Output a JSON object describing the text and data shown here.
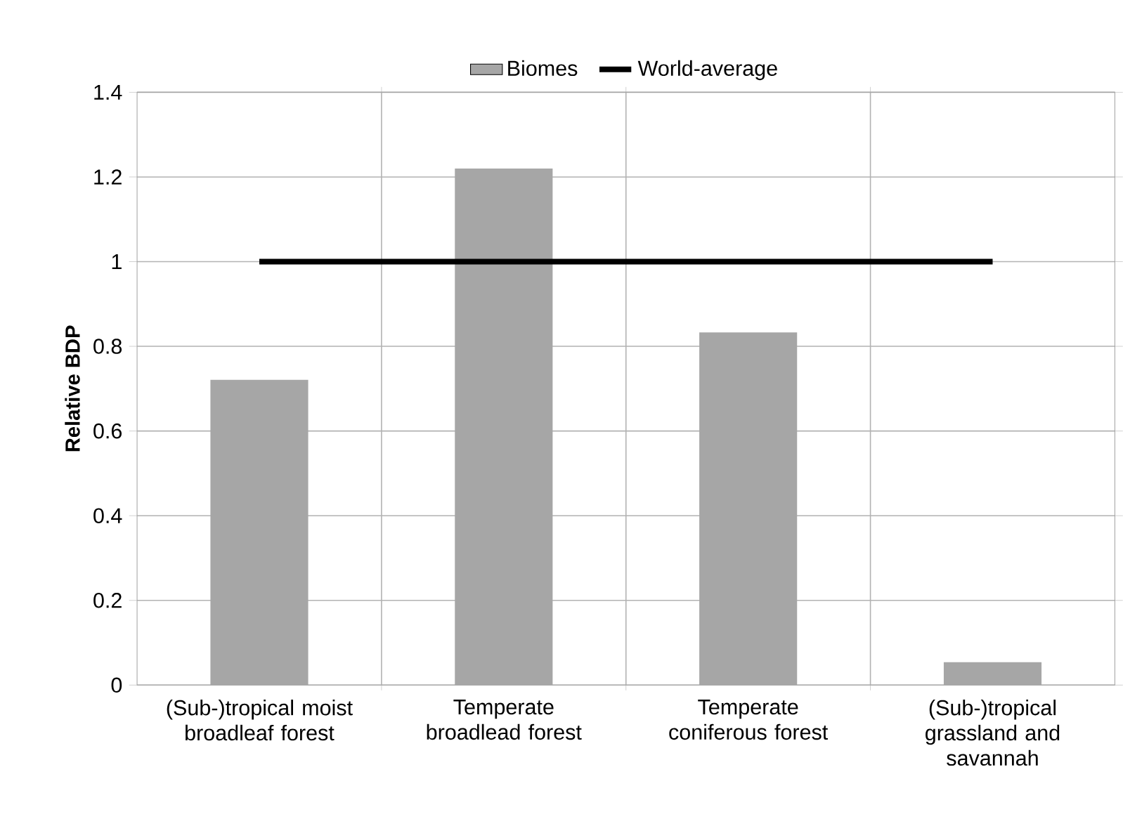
{
  "chart_data": {
    "type": "bar",
    "ylabel": "Relative BDP",
    "categories": [
      "(Sub-)tropical moist broadleaf forest",
      "Temperate broadlead forest",
      "Temperate coniferous forest",
      "(Sub-)tropical grassland and savannah"
    ],
    "series": [
      {
        "name": "Biomes",
        "color": "#a6a6a6",
        "values": [
          0.721,
          1.22,
          0.833,
          0.054
        ]
      },
      {
        "name": "World-average",
        "type": "line",
        "color": "#000000",
        "values": [
          1,
          1,
          1,
          1
        ]
      }
    ],
    "ylim": [
      0,
      1.4
    ],
    "yticks": [
      0,
      0.2,
      0.4,
      0.6,
      0.8,
      1,
      1.2,
      1.4
    ],
    "grid": true,
    "legend": "top"
  }
}
